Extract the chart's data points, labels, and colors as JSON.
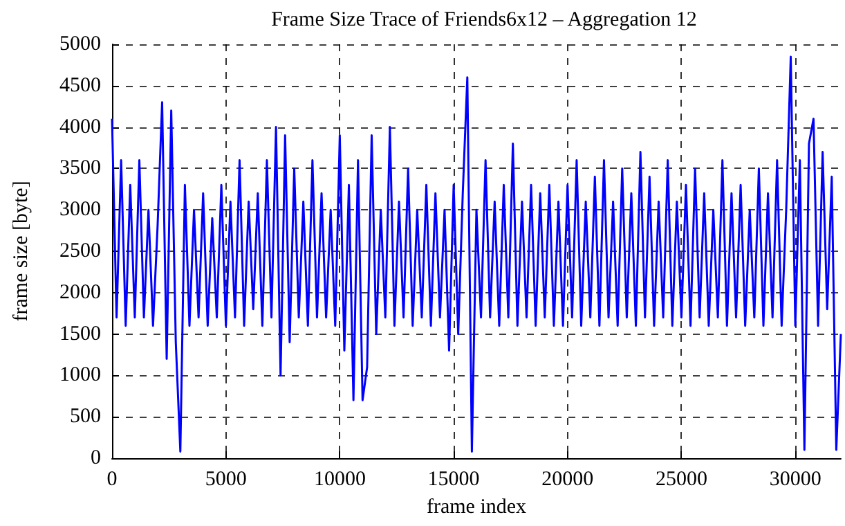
{
  "chart_data": {
    "type": "line",
    "title": "Frame Size Trace of Friends6x12 – Aggregation 12",
    "xlabel": "frame index",
    "ylabel": "frame size [byte]",
    "x": [
      0,
      200,
      400,
      600,
      800,
      1000,
      1200,
      1400,
      1600,
      1800,
      2000,
      2200,
      2400,
      2600,
      2800,
      3000,
      3200,
      3400,
      3600,
      3800,
      4000,
      4200,
      4400,
      4600,
      4800,
      5000,
      5200,
      5400,
      5600,
      5800,
      6000,
      6200,
      6400,
      6600,
      6800,
      7000,
      7200,
      7400,
      7600,
      7800,
      8000,
      8200,
      8400,
      8600,
      8800,
      9000,
      9200,
      9400,
      9600,
      9800,
      10000,
      10200,
      10400,
      10600,
      10800,
      11000,
      11200,
      11400,
      11600,
      11800,
      12000,
      12200,
      12400,
      12600,
      12800,
      13000,
      13200,
      13400,
      13600,
      13800,
      14000,
      14200,
      14400,
      14600,
      14800,
      15000,
      15200,
      15400,
      15600,
      15800,
      16000,
      16200,
      16400,
      16600,
      16800,
      17000,
      17200,
      17400,
      17600,
      17800,
      18000,
      18200,
      18400,
      18600,
      18800,
      19000,
      19200,
      19400,
      19600,
      19800,
      20000,
      20200,
      20400,
      20600,
      20800,
      21000,
      21200,
      21400,
      21600,
      21800,
      22000,
      22200,
      22400,
      22600,
      22800,
      23000,
      23200,
      23400,
      23600,
      23800,
      24000,
      24200,
      24400,
      24600,
      24800,
      25000,
      25200,
      25400,
      25600,
      25800,
      26000,
      26200,
      26400,
      26600,
      26800,
      27000,
      27200,
      27400,
      27600,
      27800,
      28000,
      28200,
      28400,
      28600,
      28800,
      29000,
      29200,
      29400,
      29600,
      29800,
      30000,
      30200,
      30400,
      30600,
      30800,
      31000,
      31200,
      31400,
      31600,
      31800,
      32000
    ],
    "series": [
      {
        "color": "#0000ff",
        "values": [
          4100,
          1700,
          3600,
          1600,
          3300,
          1700,
          3600,
          1700,
          3000,
          1600,
          2800,
          4300,
          1200,
          4200,
          1400,
          80,
          3300,
          1600,
          3000,
          1700,
          3200,
          1600,
          2900,
          1700,
          3300,
          1600,
          3100,
          1700,
          3600,
          1600,
          3100,
          1800,
          3200,
          1600,
          3600,
          1700,
          4000,
          1000,
          3900,
          1400,
          3500,
          1700,
          3100,
          1600,
          3600,
          1700,
          3200,
          1700,
          3000,
          1600,
          3900,
          1300,
          3300,
          700,
          3600,
          700,
          1100,
          3900,
          1500,
          3000,
          1700,
          4000,
          1600,
          3100,
          1700,
          3500,
          1600,
          3000,
          1700,
          3300,
          1600,
          3200,
          1700,
          3000,
          1300,
          3300,
          1500,
          3200,
          4600,
          80,
          3000,
          1700,
          3600,
          1700,
          3100,
          1600,
          3300,
          1700,
          3800,
          1600,
          3100,
          1700,
          3300,
          1600,
          3200,
          1700,
          3300,
          1600,
          3100,
          1600,
          3300,
          1700,
          3600,
          1600,
          3100,
          1700,
          3400,
          1600,
          3600,
          1700,
          3100,
          1600,
          3500,
          1700,
          3200,
          1600,
          3700,
          1700,
          3400,
          1600,
          3100,
          1700,
          3600,
          1600,
          3100,
          1700,
          3300,
          1600,
          3500,
          1700,
          3200,
          1600,
          3000,
          1700,
          3600,
          1600,
          3200,
          1700,
          3300,
          1600,
          3000,
          1700,
          3500,
          1600,
          3200,
          1700,
          3600,
          1600,
          3000,
          4850,
          1600,
          3600,
          100,
          3800,
          4100,
          1600,
          3700,
          1800,
          3400,
          100,
          1500
        ]
      }
    ],
    "xlim": [
      0,
      32000
    ],
    "xticks": [
      0,
      5000,
      10000,
      15000,
      20000,
      25000,
      30000
    ],
    "ylim": [
      0,
      5000
    ],
    "yticks": [
      0,
      500,
      1000,
      1500,
      2000,
      2500,
      3000,
      3500,
      4000,
      4500,
      5000
    ],
    "grid": true,
    "marker": "none",
    "line_style": "solid"
  }
}
